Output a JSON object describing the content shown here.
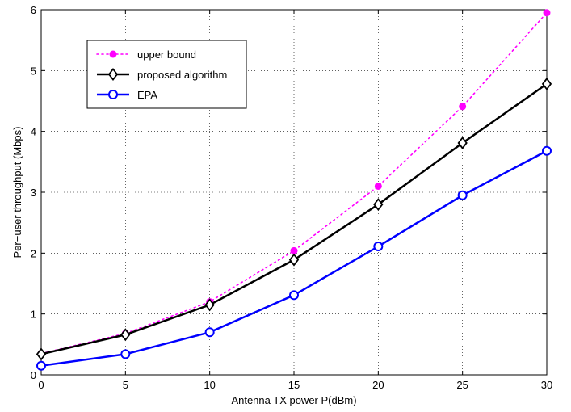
{
  "chart_data": {
    "type": "line",
    "title": "",
    "xlabel": "Antenna TX power P(dBm)",
    "ylabel": "Per−user throughput (Mbps)",
    "xlim": [
      0,
      30
    ],
    "ylim": [
      0,
      6
    ],
    "xticks": [
      0,
      5,
      10,
      15,
      20,
      25,
      30
    ],
    "yticks": [
      0,
      1,
      2,
      3,
      4,
      5,
      6
    ],
    "grid": true,
    "legend_position": "top-left",
    "x": [
      0,
      5,
      10,
      15,
      20,
      25,
      30
    ],
    "series": [
      {
        "name": "upper bound",
        "values": [
          0.35,
          0.68,
          1.2,
          2.04,
          3.1,
          4.41,
          5.95
        ],
        "color": "#ff00ff",
        "line": "dotted",
        "marker": "filled-circle"
      },
      {
        "name": "proposed algorithm",
        "values": [
          0.34,
          0.66,
          1.15,
          1.89,
          2.8,
          3.81,
          4.78
        ],
        "color": "#000000",
        "line": "solid",
        "marker": "diamond"
      },
      {
        "name": "EPA",
        "values": [
          0.15,
          0.34,
          0.7,
          1.31,
          2.11,
          2.95,
          3.68
        ],
        "color": "#0000ff",
        "line": "solid",
        "marker": "open-circle"
      }
    ]
  }
}
